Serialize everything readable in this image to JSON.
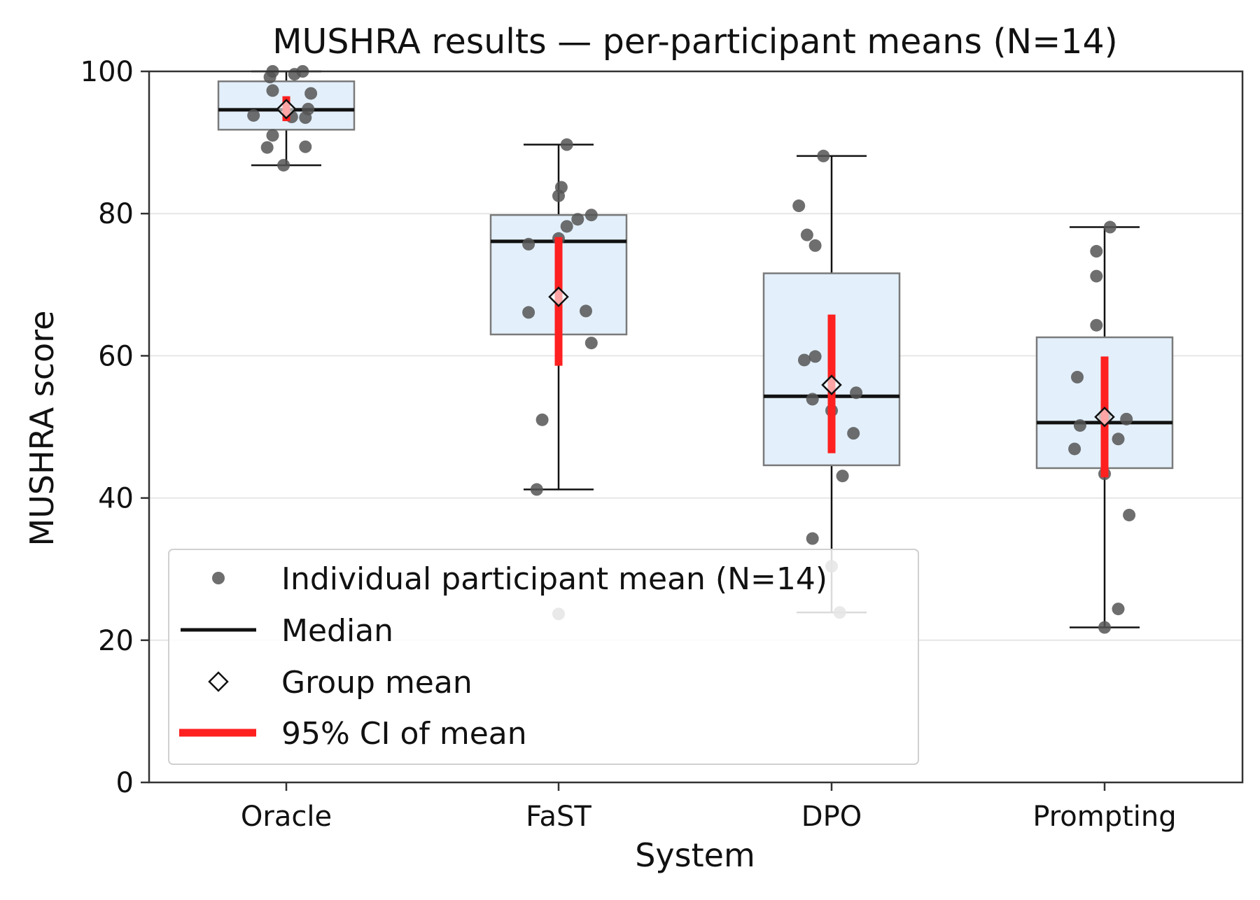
{
  "chart_data": {
    "type": "box",
    "title": "MUSHRA results — per-participant means (N=14)",
    "xlabel": "System",
    "ylabel": "MUSHRA score",
    "ylim": [
      0,
      100
    ],
    "yticks": [
      0,
      20,
      40,
      60,
      80,
      100
    ],
    "categories": [
      "Oracle",
      "FaST",
      "DPO",
      "Prompting"
    ],
    "grid": "horizontal",
    "legend_placement": "lower-left",
    "colors": {
      "box_fill": "#e3f0fb",
      "box_edge": "#7a7a7a",
      "median": "#111111",
      "whisker": "#111111",
      "points": "#555555",
      "mean_marker": "#111111",
      "ci": "#ff2020",
      "grid": "#e6e6e6"
    },
    "legend": {
      "points": "Individual participant mean (N=14)",
      "median": "Median",
      "mean": "Group mean",
      "ci": "95% CI of mean"
    },
    "boxes": [
      {
        "name": "Oracle",
        "q1": 91.8,
        "median": 94.6,
        "q3": 98.6,
        "whisker_low": 86.8,
        "whisker_high": 100,
        "mean": 94.7,
        "ci": [
          93.0,
          96.5
        ]
      },
      {
        "name": "FaST",
        "q1": 63.0,
        "median": 76.1,
        "q3": 79.8,
        "whisker_low": 41.2,
        "whisker_high": 89.7,
        "mean": 68.3,
        "ci": [
          58.6,
          76.7
        ]
      },
      {
        "name": "DPO",
        "q1": 44.6,
        "median": 54.3,
        "q3": 71.6,
        "whisker_low": 23.9,
        "whisker_high": 88.1,
        "mean": 55.9,
        "ci": [
          46.3,
          65.8
        ]
      },
      {
        "name": "Prompting",
        "q1": 44.2,
        "median": 50.6,
        "q3": 62.6,
        "whisker_low": 21.8,
        "whisker_high": 78.1,
        "mean": 51.4,
        "ci": [
          42.9,
          59.9
        ]
      }
    ],
    "points": [
      {
        "category": "Oracle",
        "offset": -0.12,
        "value": 93.8
      },
      {
        "category": "Oracle",
        "offset": -0.07,
        "value": 89.3
      },
      {
        "category": "Oracle",
        "offset": -0.05,
        "value": 91.0
      },
      {
        "category": "Oracle",
        "offset": -0.05,
        "value": 97.3
      },
      {
        "category": "Oracle",
        "offset": -0.06,
        "value": 99.2
      },
      {
        "category": "Oracle",
        "offset": -0.05,
        "value": 100.0
      },
      {
        "category": "Oracle",
        "offset": -0.01,
        "value": 86.8
      },
      {
        "category": "Oracle",
        "offset": 0.03,
        "value": 99.6
      },
      {
        "category": "Oracle",
        "offset": 0.06,
        "value": 100.0
      },
      {
        "category": "Oracle",
        "offset": 0.07,
        "value": 93.5
      },
      {
        "category": "Oracle",
        "offset": 0.08,
        "value": 94.7
      },
      {
        "category": "Oracle",
        "offset": 0.09,
        "value": 96.9
      },
      {
        "category": "Oracle",
        "offset": 0.07,
        "value": 89.4
      },
      {
        "category": "Oracle",
        "offset": 0.02,
        "value": 93.6
      },
      {
        "category": "FaST",
        "offset": -0.11,
        "value": 75.7
      },
      {
        "category": "FaST",
        "offset": -0.11,
        "value": 66.1
      },
      {
        "category": "FaST",
        "offset": -0.06,
        "value": 51.0
      },
      {
        "category": "FaST",
        "offset": -0.08,
        "value": 41.2
      },
      {
        "category": "FaST",
        "offset": 0.0,
        "value": 82.5
      },
      {
        "category": "FaST",
        "offset": 0.01,
        "value": 83.7
      },
      {
        "category": "FaST",
        "offset": 0.03,
        "value": 89.7
      },
      {
        "category": "FaST",
        "offset": 0.03,
        "value": 78.2
      },
      {
        "category": "FaST",
        "offset": 0.07,
        "value": 79.2
      },
      {
        "category": "FaST",
        "offset": 0.12,
        "value": 79.8
      },
      {
        "category": "FaST",
        "offset": 0.1,
        "value": 66.3
      },
      {
        "category": "FaST",
        "offset": 0.12,
        "value": 61.8
      },
      {
        "category": "FaST",
        "offset": 0.0,
        "value": 76.5
      },
      {
        "category": "FaST",
        "offset": 0.0,
        "value": 23.7
      },
      {
        "category": "DPO",
        "offset": -0.12,
        "value": 81.1
      },
      {
        "category": "DPO",
        "offset": -0.09,
        "value": 77.0
      },
      {
        "category": "DPO",
        "offset": -0.06,
        "value": 75.5
      },
      {
        "category": "DPO",
        "offset": -0.1,
        "value": 59.4
      },
      {
        "category": "DPO",
        "offset": -0.06,
        "value": 59.9
      },
      {
        "category": "DPO",
        "offset": -0.07,
        "value": 53.9
      },
      {
        "category": "DPO",
        "offset": -0.07,
        "value": 34.3
      },
      {
        "category": "DPO",
        "offset": -0.03,
        "value": 88.1
      },
      {
        "category": "DPO",
        "offset": 0.0,
        "value": 52.3
      },
      {
        "category": "DPO",
        "offset": 0.09,
        "value": 54.8
      },
      {
        "category": "DPO",
        "offset": 0.08,
        "value": 49.1
      },
      {
        "category": "DPO",
        "offset": 0.04,
        "value": 43.1
      },
      {
        "category": "DPO",
        "offset": 0.03,
        "value": 23.9
      },
      {
        "category": "DPO",
        "offset": 0.0,
        "value": 30.4
      },
      {
        "category": "Prompting",
        "offset": -0.1,
        "value": 57.0
      },
      {
        "category": "Prompting",
        "offset": -0.09,
        "value": 50.2
      },
      {
        "category": "Prompting",
        "offset": -0.11,
        "value": 46.9
      },
      {
        "category": "Prompting",
        "offset": -0.03,
        "value": 74.7
      },
      {
        "category": "Prompting",
        "offset": -0.03,
        "value": 71.2
      },
      {
        "category": "Prompting",
        "offset": -0.03,
        "value": 64.3
      },
      {
        "category": "Prompting",
        "offset": 0.0,
        "value": 43.4
      },
      {
        "category": "Prompting",
        "offset": 0.0,
        "value": 21.8
      },
      {
        "category": "Prompting",
        "offset": 0.02,
        "value": 78.1
      },
      {
        "category": "Prompting",
        "offset": 0.05,
        "value": 24.4
      },
      {
        "category": "Prompting",
        "offset": 0.05,
        "value": 48.3
      },
      {
        "category": "Prompting",
        "offset": 0.08,
        "value": 51.1
      },
      {
        "category": "Prompting",
        "offset": 0.09,
        "value": 37.6
      },
      {
        "category": "Prompting",
        "offset": 0.0,
        "value": 51.6
      }
    ]
  }
}
